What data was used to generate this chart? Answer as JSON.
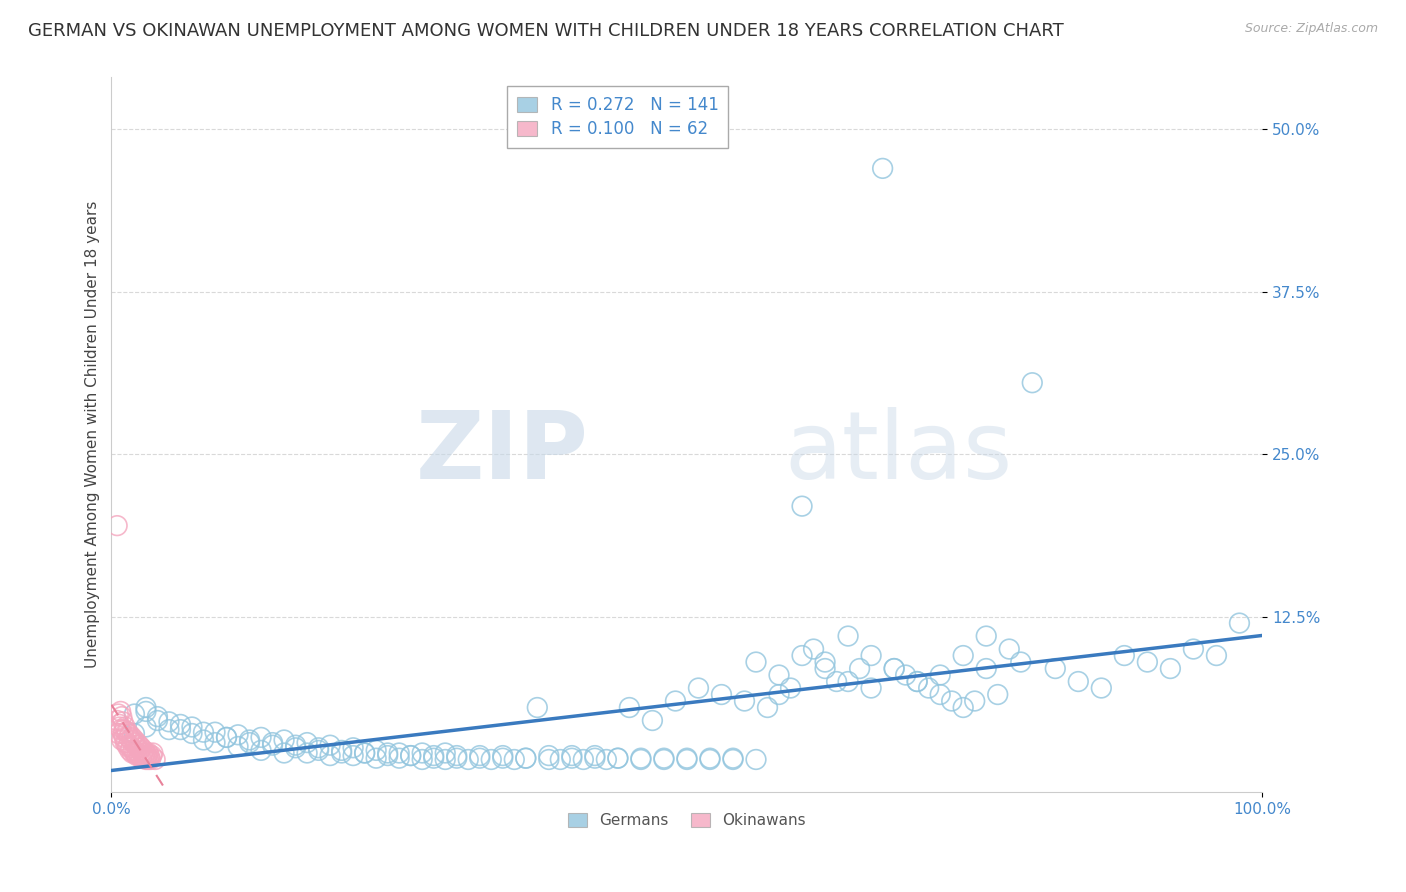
{
  "title": "GERMAN VS OKINAWAN UNEMPLOYMENT AMONG WOMEN WITH CHILDREN UNDER 18 YEARS CORRELATION CHART",
  "source": "Source: ZipAtlas.com",
  "ylabel": "Unemployment Among Women with Children Under 18 years",
  "xlim": [
    0.0,
    1.0
  ],
  "ylim": [
    -0.01,
    0.54
  ],
  "yticks": [
    0.125,
    0.25,
    0.375,
    0.5
  ],
  "ytick_labels": [
    "12.5%",
    "25.0%",
    "37.5%",
    "50.0%"
  ],
  "xtick_labels": [
    "0.0%",
    "100.0%"
  ],
  "german_R": 0.272,
  "german_N": 141,
  "okinawan_R": 0.1,
  "okinawan_N": 62,
  "german_color": "#92c5de",
  "okinawan_color": "#f4a6be",
  "german_line_color": "#3a7abf",
  "okinawan_line_color": "#e8829a",
  "background_color": "#ffffff",
  "grid_color": "#d0d0d0",
  "watermark_zip": "ZIP",
  "watermark_atlas": "atlas",
  "title_fontsize": 13,
  "label_fontsize": 11,
  "tick_fontsize": 11,
  "tick_color": "#4488cc",
  "german_scatter_x": [
    0.02,
    0.03,
    0.04,
    0.02,
    0.03,
    0.05,
    0.06,
    0.04,
    0.03,
    0.07,
    0.08,
    0.06,
    0.05,
    0.09,
    0.1,
    0.08,
    0.07,
    0.11,
    0.12,
    0.1,
    0.09,
    0.13,
    0.14,
    0.12,
    0.11,
    0.15,
    0.16,
    0.14,
    0.13,
    0.17,
    0.18,
    0.16,
    0.15,
    0.19,
    0.2,
    0.18,
    0.17,
    0.21,
    0.22,
    0.2,
    0.19,
    0.23,
    0.24,
    0.22,
    0.21,
    0.25,
    0.26,
    0.24,
    0.23,
    0.27,
    0.28,
    0.26,
    0.25,
    0.29,
    0.3,
    0.28,
    0.27,
    0.31,
    0.32,
    0.3,
    0.29,
    0.33,
    0.34,
    0.32,
    0.35,
    0.36,
    0.34,
    0.37,
    0.38,
    0.36,
    0.39,
    0.4,
    0.38,
    0.41,
    0.42,
    0.4,
    0.43,
    0.44,
    0.42,
    0.45,
    0.46,
    0.44,
    0.47,
    0.48,
    0.46,
    0.49,
    0.5,
    0.48,
    0.51,
    0.52,
    0.5,
    0.53,
    0.54,
    0.52,
    0.55,
    0.56,
    0.54,
    0.57,
    0.58,
    0.56,
    0.59,
    0.6,
    0.58,
    0.61,
    0.62,
    0.6,
    0.63,
    0.64,
    0.62,
    0.65,
    0.66,
    0.64,
    0.67,
    0.68,
    0.66,
    0.69,
    0.7,
    0.68,
    0.71,
    0.72,
    0.7,
    0.73,
    0.74,
    0.72,
    0.75,
    0.76,
    0.74,
    0.77,
    0.78,
    0.76,
    0.79,
    0.8,
    0.82,
    0.84,
    0.86,
    0.88,
    0.9,
    0.92,
    0.94,
    0.96,
    0.98
  ],
  "german_scatter_y": [
    0.05,
    0.04,
    0.045,
    0.035,
    0.055,
    0.038,
    0.042,
    0.048,
    0.052,
    0.035,
    0.03,
    0.038,
    0.044,
    0.028,
    0.032,
    0.036,
    0.04,
    0.025,
    0.028,
    0.032,
    0.036,
    0.022,
    0.026,
    0.03,
    0.034,
    0.02,
    0.024,
    0.028,
    0.032,
    0.02,
    0.022,
    0.026,
    0.03,
    0.018,
    0.02,
    0.024,
    0.028,
    0.018,
    0.02,
    0.022,
    0.026,
    0.016,
    0.018,
    0.02,
    0.024,
    0.016,
    0.018,
    0.02,
    0.022,
    0.015,
    0.016,
    0.018,
    0.02,
    0.015,
    0.016,
    0.018,
    0.02,
    0.015,
    0.016,
    0.018,
    0.02,
    0.015,
    0.016,
    0.018,
    0.015,
    0.016,
    0.018,
    0.055,
    0.015,
    0.016,
    0.015,
    0.016,
    0.018,
    0.015,
    0.016,
    0.018,
    0.015,
    0.016,
    0.018,
    0.055,
    0.015,
    0.016,
    0.045,
    0.015,
    0.016,
    0.06,
    0.015,
    0.016,
    0.07,
    0.015,
    0.016,
    0.065,
    0.015,
    0.016,
    0.06,
    0.015,
    0.016,
    0.055,
    0.08,
    0.09,
    0.07,
    0.21,
    0.065,
    0.1,
    0.085,
    0.095,
    0.075,
    0.11,
    0.09,
    0.085,
    0.095,
    0.075,
    0.47,
    0.085,
    0.07,
    0.08,
    0.075,
    0.085,
    0.07,
    0.08,
    0.075,
    0.06,
    0.055,
    0.065,
    0.06,
    0.11,
    0.095,
    0.065,
    0.1,
    0.085,
    0.09,
    0.305,
    0.085,
    0.075,
    0.07,
    0.095,
    0.09,
    0.085,
    0.1,
    0.095,
    0.12
  ],
  "okinawan_scatter_x": [
    0.005,
    0.006,
    0.007,
    0.005,
    0.006,
    0.008,
    0.007,
    0.009,
    0.008,
    0.01,
    0.009,
    0.011,
    0.01,
    0.012,
    0.011,
    0.013,
    0.012,
    0.014,
    0.013,
    0.015,
    0.014,
    0.016,
    0.015,
    0.017,
    0.016,
    0.018,
    0.017,
    0.019,
    0.018,
    0.02,
    0.019,
    0.021,
    0.02,
    0.022,
    0.021,
    0.023,
    0.022,
    0.024,
    0.023,
    0.025,
    0.024,
    0.026,
    0.025,
    0.027,
    0.026,
    0.028,
    0.027,
    0.029,
    0.028,
    0.03,
    0.029,
    0.031,
    0.03,
    0.032,
    0.031,
    0.033,
    0.032,
    0.034,
    0.033,
    0.035,
    0.036,
    0.038
  ],
  "okinawan_scatter_y": [
    0.195,
    0.05,
    0.04,
    0.045,
    0.035,
    0.038,
    0.042,
    0.048,
    0.052,
    0.035,
    0.03,
    0.038,
    0.044,
    0.028,
    0.032,
    0.036,
    0.04,
    0.025,
    0.028,
    0.032,
    0.036,
    0.022,
    0.026,
    0.03,
    0.034,
    0.02,
    0.024,
    0.028,
    0.032,
    0.02,
    0.022,
    0.026,
    0.03,
    0.018,
    0.02,
    0.024,
    0.028,
    0.018,
    0.02,
    0.022,
    0.026,
    0.016,
    0.018,
    0.02,
    0.024,
    0.016,
    0.018,
    0.02,
    0.022,
    0.015,
    0.016,
    0.018,
    0.02,
    0.015,
    0.016,
    0.018,
    0.02,
    0.015,
    0.016,
    0.018,
    0.02,
    0.015
  ]
}
